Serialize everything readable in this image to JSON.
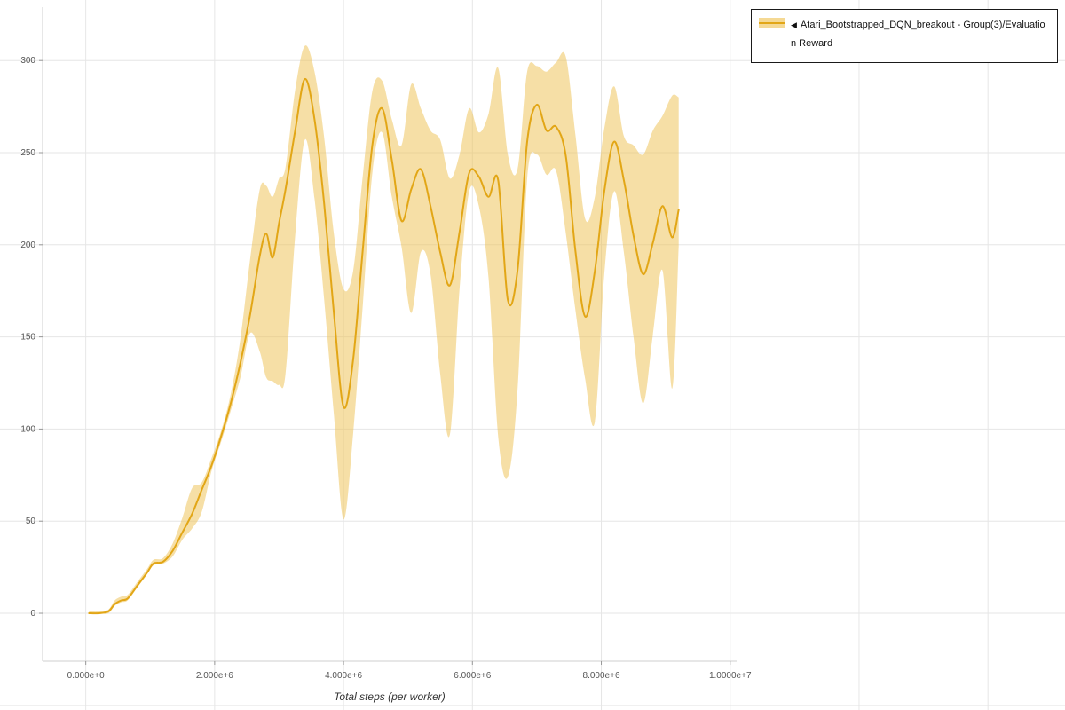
{
  "legend": {
    "collapse_icon": "◀",
    "label": "Atari_Bootstrapped_DQN_breakout - Group(3)/Evaluation Reward"
  },
  "chart_data": {
    "type": "line",
    "title": "",
    "xlabel": "Total steps (per worker)",
    "ylabel": "",
    "grid": true,
    "legend_position": "top-right",
    "x_unit": "millions of steps",
    "xlim_millions": [
      -0.67,
      10.1
    ],
    "ylim": [
      -26,
      329
    ],
    "x_ticks_millions": [
      0,
      2,
      4,
      6,
      8,
      10
    ],
    "x_tick_labels": [
      "0.000e+0",
      "2.000e+6",
      "4.000e+6",
      "6.000e+6",
      "8.000e+6",
      "1.0000e+7"
    ],
    "y_ticks": [
      0,
      50,
      100,
      150,
      200,
      250,
      300
    ],
    "y_tick_labels": [
      "0",
      "50",
      "100",
      "150",
      "200",
      "250",
      "300"
    ],
    "colors": {
      "line": "#e2a616",
      "band": "#eebf4d",
      "band_opacity": 0.5,
      "grid": "#e6e6e6",
      "axis": "#cfcfcf",
      "tick": "#999999",
      "tick_text": "#555555",
      "xlabel_text": "#333333",
      "background": "#ffffff"
    },
    "series": [
      {
        "name": "Atari_Bootstrapped_DQN_breakout - Group(3)/Evaluation Reward",
        "x_millions": [
          0.05,
          0.2,
          0.35,
          0.45,
          0.55,
          0.65,
          0.8,
          0.95,
          1.05,
          1.2,
          1.35,
          1.5,
          1.65,
          1.8,
          1.95,
          2.1,
          2.25,
          2.4,
          2.55,
          2.7,
          2.8,
          2.9,
          3.0,
          3.1,
          3.25,
          3.4,
          3.55,
          3.7,
          3.85,
          4.0,
          4.15,
          4.3,
          4.45,
          4.6,
          4.75,
          4.9,
          5.05,
          5.2,
          5.35,
          5.5,
          5.65,
          5.8,
          5.95,
          6.1,
          6.25,
          6.4,
          6.55,
          6.7,
          6.85,
          7.0,
          7.15,
          7.3,
          7.45,
          7.6,
          7.75,
          7.9,
          8.05,
          8.2,
          8.35,
          8.5,
          8.65,
          8.8,
          8.95,
          9.1,
          9.2
        ],
        "mean": [
          0,
          0,
          1,
          5,
          7,
          8,
          15,
          22,
          27,
          28,
          34,
          44,
          54,
          67,
          80,
          96,
          114,
          136,
          162,
          194,
          206,
          193,
          212,
          230,
          262,
          290,
          268,
          222,
          163,
          112,
          138,
          198,
          255,
          274,
          246,
          213,
          230,
          241,
          221,
          196,
          178,
          207,
          239,
          237,
          226,
          235,
          170,
          186,
          256,
          276,
          262,
          264,
          248,
          196,
          161,
          186,
          230,
          256,
          235,
          205,
          184,
          201,
          221,
          204,
          219
        ],
        "band_lower": [
          0,
          0,
          0,
          4,
          6,
          7,
          14,
          21,
          26,
          27,
          31,
          40,
          46,
          55,
          77,
          93,
          110,
          128,
          152,
          142,
          128,
          126,
          124,
          130,
          205,
          257,
          225,
          170,
          108,
          51,
          98,
          168,
          240,
          261,
          226,
          199,
          163,
          196,
          184,
          130,
          97,
          176,
          229,
          221,
          182,
          96,
          74,
          121,
          236,
          249,
          238,
          240,
          206,
          164,
          127,
          104,
          186,
          229,
          196,
          150,
          114,
          151,
          186,
          122,
          199
        ],
        "band_upper": [
          1,
          1,
          2,
          7,
          9,
          10,
          17,
          24,
          29,
          30,
          38,
          52,
          68,
          71,
          84,
          99,
          119,
          149,
          192,
          230,
          232,
          226,
          236,
          242,
          284,
          308,
          294,
          258,
          206,
          176,
          186,
          238,
          284,
          289,
          268,
          254,
          287,
          274,
          262,
          257,
          236,
          249,
          274,
          261,
          271,
          296,
          249,
          241,
          294,
          297,
          294,
          299,
          302,
          259,
          214,
          226,
          264,
          286,
          259,
          254,
          249,
          262,
          270,
          281,
          280
        ]
      }
    ]
  }
}
